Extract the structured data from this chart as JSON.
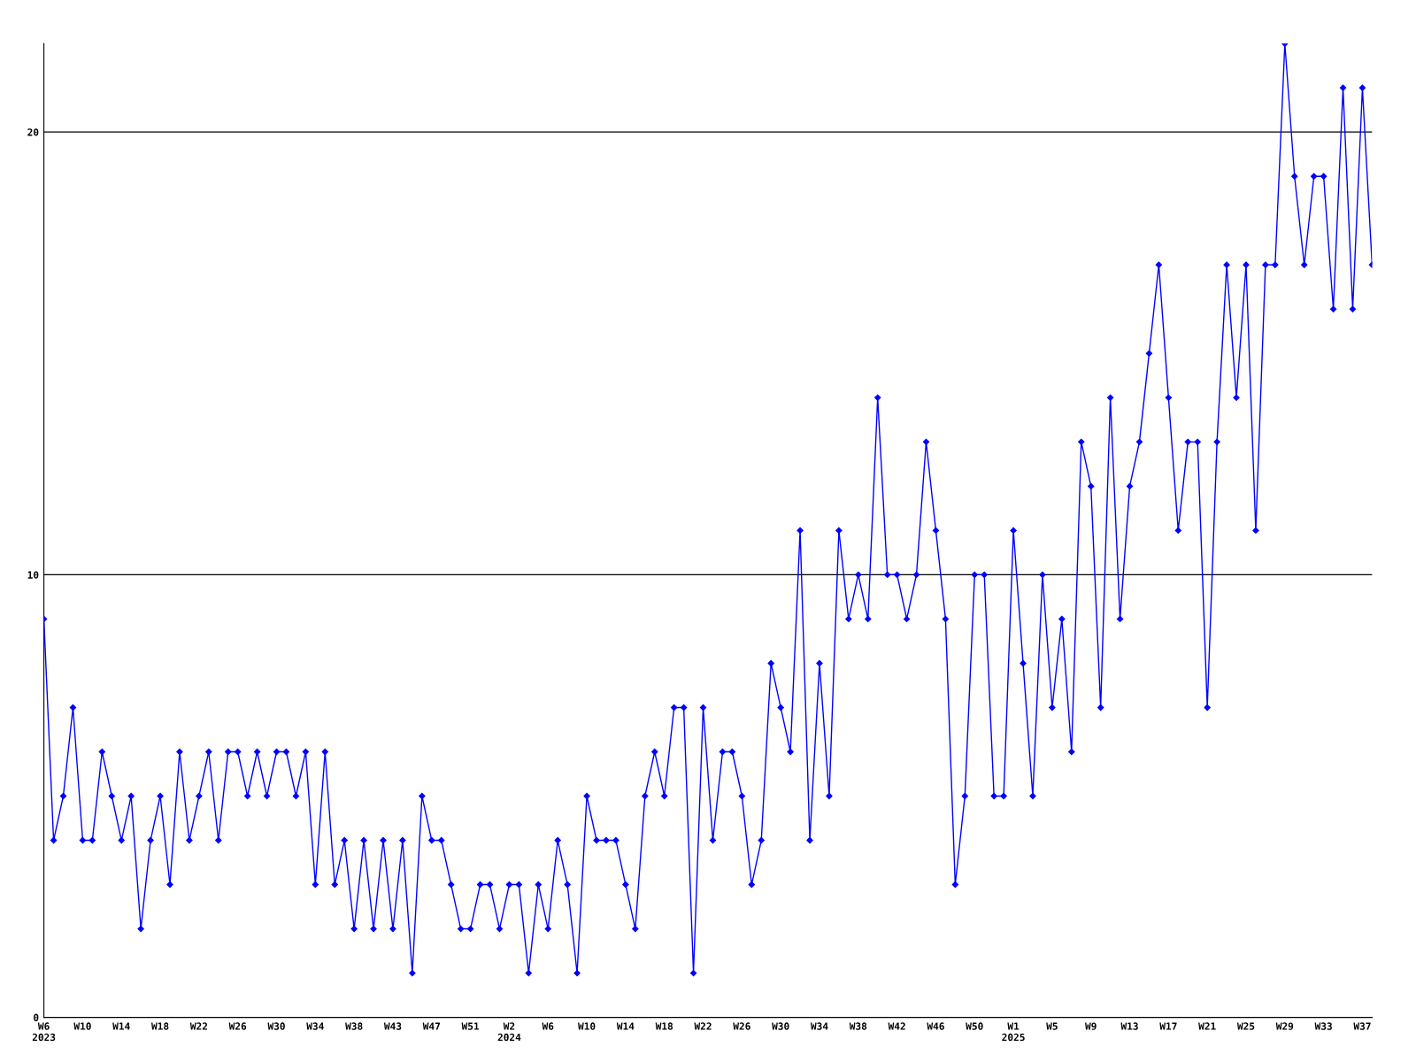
{
  "chart_data": {
    "type": "line",
    "categories": [
      "W6\n2023",
      null,
      null,
      null,
      "W10",
      null,
      null,
      null,
      "W14",
      null,
      null,
      null,
      "W18",
      null,
      null,
      null,
      "W22",
      null,
      null,
      null,
      "W26",
      null,
      null,
      null,
      "W30",
      null,
      null,
      null,
      "W34",
      null,
      null,
      null,
      "W38",
      null,
      null,
      null,
      "W43",
      null,
      null,
      null,
      "W47",
      null,
      null,
      null,
      "W51",
      null,
      null,
      null,
      "W2\n2024",
      null,
      null,
      null,
      "W6",
      null,
      null,
      null,
      "W10",
      null,
      null,
      null,
      "W14",
      null,
      null,
      null,
      "W18",
      null,
      null,
      null,
      "W22",
      null,
      null,
      null,
      "W26",
      null,
      null,
      null,
      "W30",
      null,
      null,
      null,
      "W34",
      null,
      null,
      null,
      "W38",
      null,
      null,
      null,
      "W42",
      null,
      null,
      null,
      "W46",
      null,
      null,
      null,
      "W50",
      null,
      null,
      null,
      "W1\n2025",
      null,
      null,
      null,
      "W5",
      null,
      null,
      null,
      "W9",
      null,
      null,
      null,
      "W13",
      null,
      null,
      null,
      "W17",
      null,
      null,
      null,
      "W21",
      null,
      null,
      null,
      "W25",
      null,
      null,
      null,
      "W29",
      null,
      null,
      null,
      "W33",
      null,
      null,
      null,
      "W37",
      null
    ],
    "series": [
      {
        "color": "#0000ff",
        "values": [
          9,
          4,
          5,
          7,
          4,
          4,
          6,
          5,
          4,
          5,
          2,
          4,
          5,
          3,
          6,
          4,
          5,
          6,
          4,
          6,
          6,
          5,
          6,
          5,
          6,
          6,
          5,
          6,
          3,
          6,
          3,
          4,
          2,
          4,
          2,
          4,
          2,
          4,
          1,
          5,
          4,
          4,
          3,
          2,
          2,
          3,
          3,
          2,
          3,
          3,
          1,
          3,
          2,
          4,
          3,
          1,
          5,
          4,
          4,
          4,
          3,
          2,
          5,
          6,
          5,
          7,
          7,
          1,
          7,
          4,
          6,
          6,
          5,
          3,
          4,
          8,
          7,
          6,
          11,
          4,
          8,
          5,
          11,
          9,
          10,
          9,
          14,
          10,
          10,
          9,
          10,
          13,
          11,
          9,
          3,
          5,
          10,
          10,
          5,
          5,
          11,
          8,
          5,
          10,
          7,
          9,
          6,
          13,
          12,
          7,
          14,
          9,
          12,
          13,
          15,
          17,
          14,
          11,
          13,
          13,
          7,
          13,
          17,
          14,
          17,
          11,
          17,
          17,
          22,
          19,
          17,
          19,
          19,
          16,
          21,
          16,
          21,
          17
        ]
      }
    ],
    "ylim": [
      0,
      22
    ],
    "yticks": [
      0,
      10,
      20
    ],
    "grid": "y",
    "marker": "diamond",
    "line_style": "solid"
  }
}
